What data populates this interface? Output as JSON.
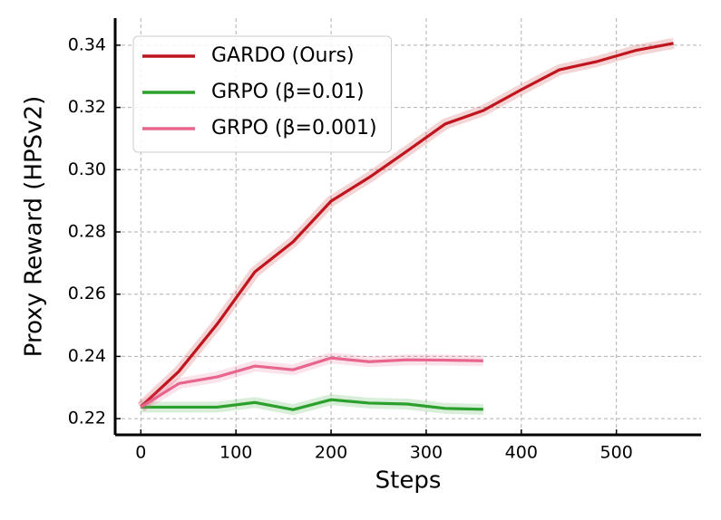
{
  "chart_data": {
    "type": "line",
    "x_label": "Steps",
    "y_label": "Proxy Reward (HPSv2)",
    "xlim": [
      -27,
      589
    ],
    "xticks": [
      0,
      100,
      200,
      300,
      400,
      500
    ],
    "ylim": [
      0.2148,
      0.3487
    ],
    "yticks": [
      0.22,
      0.24,
      0.26,
      0.28,
      {
        "value": 0.3,
        "label": "0.30"
      },
      0.32,
      0.34
    ],
    "grid": true,
    "legend": "upper left",
    "series": [
      {
        "name": "GARDO (Ours)",
        "color": "#c0141e",
        "x": [
          0,
          40,
          80,
          120,
          160,
          200,
          240,
          280,
          320,
          360,
          400,
          440,
          480,
          520,
          560
        ],
        "values": [
          0.2238,
          0.2352,
          0.2503,
          0.2672,
          0.2768,
          0.2899,
          0.2975,
          0.306,
          0.3147,
          0.319,
          0.3257,
          0.3321,
          0.3348,
          0.3383,
          0.3406
        ]
      },
      {
        "name": "GRPO (β=0.01)",
        "color": "#2ca02c",
        "x": [
          0,
          40,
          80,
          120,
          160,
          200,
          240,
          280,
          320,
          360
        ],
        "values": [
          0.2237,
          0.2237,
          0.2237,
          0.2252,
          0.2229,
          0.2261,
          0.225,
          0.2247,
          0.2233,
          0.223
        ]
      },
      {
        "name": "GRPO (β=0.001)",
        "color": "#e8658e",
        "x": [
          0,
          40,
          80,
          120,
          160,
          200,
          240,
          280,
          320,
          360
        ],
        "values": [
          0.2237,
          0.2313,
          0.2334,
          0.2369,
          0.2357,
          0.2395,
          0.2383,
          0.2389,
          0.2388,
          0.2386
        ]
      }
    ]
  }
}
